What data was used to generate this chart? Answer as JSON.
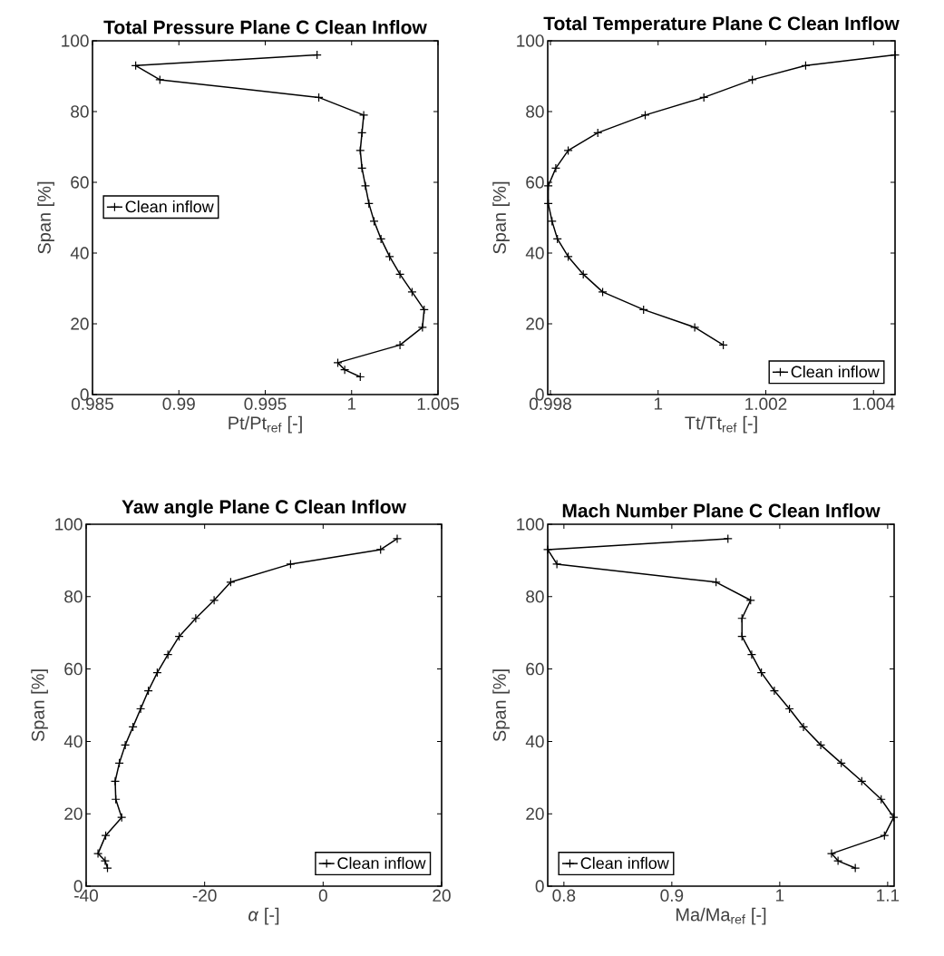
{
  "chart_data": [
    {
      "type": "line",
      "title": "Total Pressure Plane C Clean Inflow",
      "xlabel": "Pt/Pt$_{ref}$ [-]",
      "ylabel": "Span [%]",
      "xlim": [
        0.985,
        1.005
      ],
      "xticks": [
        0.985,
        0.99,
        0.995,
        1,
        1.005
      ],
      "ylim": [
        0,
        100
      ],
      "yticks": [
        0,
        20,
        40,
        60,
        80,
        100
      ],
      "legend": "left",
      "marker": "cross",
      "line_style": "solid",
      "series": [
        {
          "name": "Clean inflow",
          "color": "#000000",
          "x": [
            0.998,
            0.9875,
            0.9889,
            0.9981,
            1.0007,
            1.0006,
            1.0005,
            1.0006,
            1.0008,
            1.001,
            1.0013,
            1.0017,
            1.0022,
            1.0028,
            1.0035,
            1.0042,
            1.0041,
            1.0028,
            0.9992,
            0.9996,
            1.0005
          ],
          "values": [
            96,
            93,
            89,
            84,
            79,
            74,
            69,
            64,
            59,
            54,
            49,
            44,
            39,
            34,
            29,
            24,
            19,
            14,
            9,
            7,
            5
          ]
        }
      ]
    },
    {
      "type": "line",
      "title": "Total Temperature Plane C Clean Inflow",
      "xlabel": "Tt/Tt$_{ref}$ [-]",
      "ylabel": "Span [%]",
      "xlim": [
        0.99795,
        1.0044
      ],
      "xticks": [
        0.998,
        1,
        1.002,
        1.004
      ],
      "ylim": [
        0,
        100
      ],
      "yticks": [
        0,
        20,
        40,
        60,
        80,
        100
      ],
      "legend": "bottom right",
      "marker": "cross",
      "line_style": "solid",
      "series": [
        {
          "name": "Clean inflow",
          "color": "#000000",
          "x": [
            1.0044,
            1.00274,
            1.00175,
            1.00085,
            0.99976,
            0.99888,
            0.99833,
            0.9981,
            0.99796,
            0.99796,
            0.99803,
            0.99813,
            0.99833,
            0.99861,
            0.99897,
            0.99973,
            1.00068,
            1.00121
          ],
          "values": [
            96,
            93,
            89,
            84,
            79,
            74,
            69,
            64,
            59,
            54,
            49,
            44,
            39,
            34,
            29,
            24,
            19,
            14
          ]
        }
      ]
    },
    {
      "type": "line",
      "title": "Yaw angle Plane C Clean Inflow",
      "xlabel": "*α* [-]",
      "ylabel": "Span [%]",
      "xlim": [
        -40,
        20
      ],
      "xticks": [
        -40,
        -20,
        0,
        20
      ],
      "ylim": [
        0,
        100
      ],
      "yticks": [
        0,
        20,
        40,
        60,
        80,
        100
      ],
      "legend": "bottom right",
      "marker": "cross",
      "line_style": "solid",
      "series": [
        {
          "name": "Clean inflow",
          "color": "#000000",
          "x": [
            12.5,
            9.7,
            -5.5,
            -15.6,
            -18.4,
            -21.5,
            -24.3,
            -26.2,
            -28.0,
            -29.5,
            -30.8,
            -32.1,
            -33.4,
            -34.4,
            -35.1,
            -35.0,
            -34.0,
            -36.7,
            -38.0,
            -36.8,
            -36.4
          ],
          "values": [
            96,
            93,
            89,
            84,
            79,
            74,
            69,
            64,
            59,
            54,
            49,
            44,
            39,
            34,
            29,
            24,
            19,
            14,
            9,
            7,
            5
          ]
        }
      ]
    },
    {
      "type": "line",
      "title": "Mach Number Plane C Clean Inflow",
      "xlabel": "Ma/Ma$_{ref}$ [-]",
      "ylabel": "Span [%]",
      "xlim": [
        0.785,
        1.106
      ],
      "xticks": [
        0.8,
        0.9,
        1,
        1.1
      ],
      "ylim": [
        0,
        100
      ],
      "yticks": [
        0,
        20,
        40,
        60,
        80,
        100
      ],
      "legend": "bottom left",
      "marker": "cross",
      "line_style": "solid",
      "series": [
        {
          "name": "Clean inflow",
          "color": "#000000",
          "x": [
            0.952,
            0.785,
            0.7935,
            0.941,
            0.973,
            0.965,
            0.965,
            0.974,
            0.983,
            0.995,
            1.009,
            1.022,
            1.038,
            1.057,
            1.076,
            1.094,
            1.1056,
            1.097,
            1.048,
            1.054,
            1.07
          ],
          "values": [
            96,
            93,
            89,
            84,
            79,
            74,
            69,
            64,
            59,
            54,
            49,
            44,
            39,
            34,
            29,
            24,
            19,
            14,
            9,
            7,
            5
          ]
        }
      ]
    }
  ]
}
